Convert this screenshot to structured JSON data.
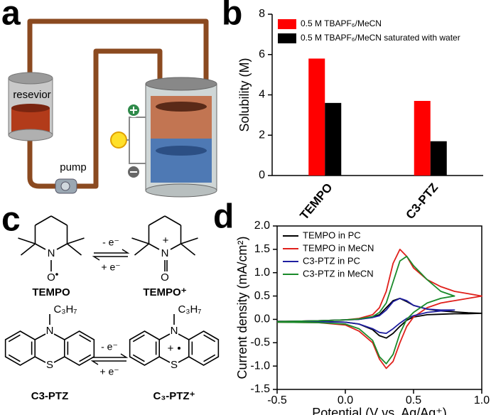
{
  "panel_labels": [
    "a",
    "b",
    "c",
    "d"
  ],
  "diagram": {
    "reservoir": "resevior",
    "pump": "pump"
  },
  "chemistry": {
    "arrows": [
      {
        "forward": "- e⁻",
        "reverse": "+ e⁻"
      },
      {
        "forward": "- e⁻",
        "reverse": "+ e⁻"
      }
    ],
    "molecules": [
      {
        "name": "TEMPO",
        "atoms": [
          "N",
          "O"
        ]
      },
      {
        "name": "TEMPO⁺",
        "atoms": [
          "N",
          "O",
          "+"
        ]
      },
      {
        "name": "C3-PTZ",
        "atoms": [
          "N",
          "S",
          "C₃H₇"
        ]
      },
      {
        "name": "C₃-PTZ⁺",
        "atoms": [
          "N",
          "S",
          "C₃H₇",
          "+"
        ]
      }
    ]
  },
  "chart_data": [
    {
      "type": "bar",
      "ylabel": "Solubility (M)",
      "categories": [
        "TEMPO",
        "C3-PTZ"
      ],
      "series": [
        {
          "name": "0.5 M TBAPF₆/MeCN",
          "color": "#ff0000",
          "values": [
            5.8,
            3.7
          ]
        },
        {
          "name": "0.5 M TBAPF₆/MeCN saturated with water",
          "color": "#000000",
          "values": [
            3.6,
            1.7
          ]
        }
      ],
      "ylim": [
        0,
        8
      ],
      "yticks": [
        0,
        2,
        4,
        6,
        8
      ],
      "legend": "top-left"
    },
    {
      "type": "line",
      "xlabel": "Potential (V vs. Ag/Ag⁺)",
      "ylabel": "Current density (mA/cm²)",
      "xlim": [
        -0.5,
        1.0
      ],
      "xticks": [
        -0.5,
        {
          "value": 0,
          "label": "0.0"
        },
        0.5,
        {
          "value": 1,
          "label": "1.0"
        }
      ],
      "ylim": [
        -1.5,
        2.0
      ],
      "yticks": [
        -1.5,
        {
          "value": -1,
          "label": "-1.0"
        },
        -0.5,
        {
          "value": 0,
          "label": "0.0"
        },
        0.5,
        {
          "value": 1,
          "label": "1.0"
        },
        1.5,
        {
          "value": 2,
          "label": "2.0"
        }
      ],
      "legend": "top-left",
      "series": [
        {
          "name": "TEMPO in PC",
          "color": "#000000",
          "x": [
            -0.5,
            -0.2,
            0,
            0.1,
            0.2,
            0.25,
            0.3,
            0.35,
            0.4,
            0.45,
            0.5,
            0.6,
            0.7,
            0.8,
            0.9,
            1.0,
            0.9,
            0.8,
            0.7,
            0.6,
            0.5,
            0.45,
            0.4,
            0.35,
            0.3,
            0.25,
            0.2,
            0.1,
            0,
            -0.2,
            -0.5
          ],
          "values": [
            -0.05,
            -0.03,
            -0.01,
            0,
            0.05,
            0.1,
            0.25,
            0.4,
            0.45,
            0.38,
            0.3,
            0.22,
            0.18,
            0.16,
            0.14,
            0.13,
            0.12,
            0.12,
            0.11,
            0.1,
            0.05,
            -0.02,
            -0.15,
            -0.3,
            -0.4,
            -0.35,
            -0.22,
            -0.1,
            -0.06,
            -0.04,
            -0.04
          ]
        },
        {
          "name": "TEMPO in MeCN",
          "color": "#e0201b",
          "x": [
            -0.5,
            -0.2,
            0,
            0.1,
            0.2,
            0.25,
            0.3,
            0.35,
            0.4,
            0.45,
            0.5,
            0.6,
            0.7,
            0.8,
            0.9,
            1.0,
            0.9,
            0.8,
            0.7,
            0.6,
            0.5,
            0.45,
            0.4,
            0.35,
            0.3,
            0.25,
            0.2,
            0.1,
            0,
            -0.2,
            -0.5
          ],
          "values": [
            -0.05,
            -0.03,
            -0.01,
            0.02,
            0.1,
            0.25,
            0.6,
            1.2,
            1.5,
            1.35,
            1.1,
            0.85,
            0.7,
            0.6,
            0.55,
            0.5,
            0.45,
            0.4,
            0.35,
            0.25,
            0.05,
            -0.15,
            -0.5,
            -0.9,
            -1.05,
            -0.85,
            -0.5,
            -0.25,
            -0.12,
            -0.07,
            -0.06
          ]
        },
        {
          "name": "C3-PTZ in PC",
          "color": "#1f1fa0",
          "x": [
            -0.5,
            -0.2,
            0,
            0.1,
            0.2,
            0.25,
            0.3,
            0.35,
            0.4,
            0.45,
            0.5,
            0.6,
            0.7,
            0.8,
            0.7,
            0.6,
            0.5,
            0.45,
            0.4,
            0.35,
            0.3,
            0.25,
            0.2,
            0.1,
            0,
            -0.2,
            -0.5
          ],
          "values": [
            -0.05,
            -0.03,
            -0.01,
            0,
            0.04,
            0.08,
            0.2,
            0.38,
            0.45,
            0.4,
            0.3,
            0.22,
            0.2,
            0.2,
            0.18,
            0.15,
            0.08,
            0.02,
            -0.08,
            -0.2,
            -0.3,
            -0.28,
            -0.2,
            -0.1,
            -0.06,
            -0.05,
            -0.05
          ]
        },
        {
          "name": "C3-PTZ in MeCN",
          "color": "#1a8a2a",
          "x": [
            -0.5,
            -0.2,
            0,
            0.1,
            0.2,
            0.25,
            0.3,
            0.35,
            0.4,
            0.45,
            0.5,
            0.6,
            0.7,
            0.8,
            0.7,
            0.6,
            0.5,
            0.45,
            0.4,
            0.35,
            0.3,
            0.25,
            0.2,
            0.1,
            0,
            -0.2,
            -0.5
          ],
          "values": [
            -0.05,
            -0.03,
            -0.01,
            0.01,
            0.06,
            0.15,
            0.35,
            0.8,
            1.25,
            1.35,
            1.15,
            0.85,
            0.6,
            0.5,
            0.45,
            0.35,
            0.15,
            0,
            -0.3,
            -0.75,
            -0.95,
            -0.8,
            -0.45,
            -0.2,
            -0.1,
            -0.07,
            -0.06
          ]
        }
      ]
    }
  ]
}
